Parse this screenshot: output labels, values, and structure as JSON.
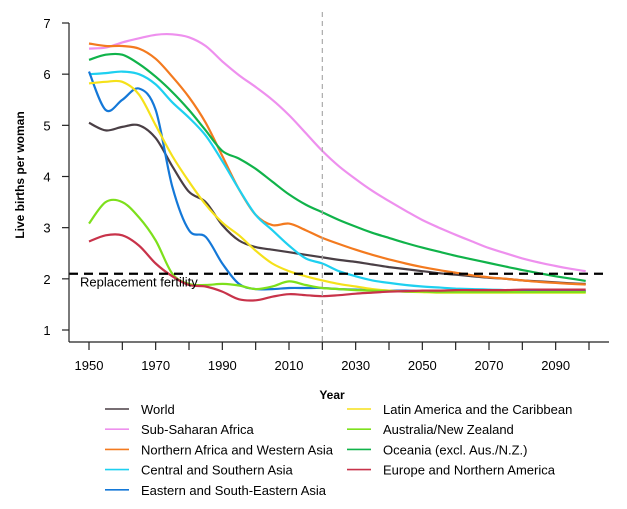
{
  "chart_data": {
    "type": "line",
    "title": "",
    "xlabel": "Year",
    "ylabel": "Live births per woman",
    "xlim": [
      1950,
      2100
    ],
    "ylim": [
      1,
      7
    ],
    "x_ticks": [
      1950,
      1960,
      1970,
      1980,
      1990,
      2000,
      2010,
      2020,
      2030,
      2040,
      2050,
      2060,
      2070,
      2080,
      2090,
      2100
    ],
    "x_tick_labels": [
      "1950",
      "",
      "1970",
      "",
      "1990",
      "",
      "2010",
      "",
      "2030",
      "",
      "2050",
      "",
      "2070",
      "",
      "2090",
      ""
    ],
    "y_ticks": [
      1,
      2,
      3,
      4,
      5,
      6,
      7
    ],
    "y_tick_labels": [
      "1",
      "2",
      "3",
      "4",
      "5",
      "6",
      "7"
    ],
    "grid": false,
    "legend_position": "bottom",
    "reference_line": {
      "y": 2.1,
      "label": "Replacement fertility",
      "color": "#000000",
      "style": "dashed"
    },
    "vertical_marker": {
      "x": 2020,
      "color": "#aaaaaa",
      "style": "dashed"
    },
    "x": [
      1950,
      1955,
      1960,
      1965,
      1970,
      1975,
      1980,
      1985,
      1990,
      1995,
      2000,
      2005,
      2010,
      2015,
      2020,
      2025,
      2030,
      2035,
      2040,
      2045,
      2050,
      2055,
      2060,
      2065,
      2070,
      2075,
      2080,
      2085,
      2090,
      2095,
      2099
    ],
    "series": [
      {
        "name": "World",
        "color": "#4a3f45",
        "values": [
          5.05,
          4.9,
          4.97,
          5.0,
          4.75,
          4.2,
          3.7,
          3.5,
          3.05,
          2.75,
          2.62,
          2.57,
          2.52,
          2.47,
          2.42,
          2.37,
          2.33,
          2.28,
          2.23,
          2.19,
          2.15,
          2.11,
          2.08,
          2.05,
          2.02,
          2.0,
          1.97,
          1.95,
          1.93,
          1.91,
          1.9
        ]
      },
      {
        "name": "Sub-Saharan Africa",
        "color": "#ee90ee",
        "values": [
          6.5,
          6.52,
          6.62,
          6.7,
          6.77,
          6.78,
          6.72,
          6.55,
          6.25,
          5.98,
          5.75,
          5.5,
          5.2,
          4.85,
          4.5,
          4.2,
          3.95,
          3.72,
          3.52,
          3.33,
          3.15,
          3.0,
          2.86,
          2.73,
          2.6,
          2.5,
          2.4,
          2.32,
          2.25,
          2.19,
          2.15
        ]
      },
      {
        "name": "Northern Africa and Western Asia",
        "color": "#f37a1f",
        "values": [
          6.6,
          6.55,
          6.55,
          6.5,
          6.3,
          5.95,
          5.55,
          5.05,
          4.4,
          3.75,
          3.25,
          3.05,
          3.08,
          2.95,
          2.8,
          2.68,
          2.57,
          2.47,
          2.38,
          2.3,
          2.23,
          2.17,
          2.12,
          2.07,
          2.03,
          2.0,
          1.97,
          1.94,
          1.92,
          1.9,
          1.89
        ]
      },
      {
        "name": "Central and Southern Asia",
        "color": "#1ed0f0",
        "values": [
          6.0,
          6.02,
          6.05,
          6.0,
          5.8,
          5.45,
          5.15,
          4.8,
          4.3,
          3.75,
          3.25,
          2.95,
          2.65,
          2.4,
          2.3,
          2.15,
          2.05,
          1.97,
          1.92,
          1.88,
          1.85,
          1.83,
          1.81,
          1.8,
          1.79,
          1.78,
          1.77,
          1.77,
          1.76,
          1.76,
          1.76
        ]
      },
      {
        "name": "Eastern and South-Eastern Asia",
        "color": "#1478d8",
        "values": [
          6.05,
          5.3,
          5.5,
          5.72,
          5.3,
          3.8,
          2.95,
          2.82,
          2.3,
          1.9,
          1.8,
          1.8,
          1.82,
          1.82,
          1.82,
          1.8,
          1.79,
          1.78,
          1.77,
          1.77,
          1.76,
          1.76,
          1.76,
          1.76,
          1.76,
          1.76,
          1.76,
          1.76,
          1.76,
          1.76,
          1.76
        ]
      },
      {
        "name": "Latin America and the Caribbean",
        "color": "#f5e11a",
        "values": [
          5.82,
          5.85,
          5.85,
          5.6,
          5.0,
          4.4,
          3.9,
          3.45,
          3.1,
          2.85,
          2.55,
          2.3,
          2.15,
          2.05,
          1.97,
          1.9,
          1.85,
          1.8,
          1.77,
          1.75,
          1.74,
          1.73,
          1.73,
          1.73,
          1.73,
          1.73,
          1.73,
          1.73,
          1.73,
          1.73,
          1.73
        ]
      },
      {
        "name": "Australia/New Zealand",
        "color": "#7de01c",
        "values": [
          3.08,
          3.5,
          3.5,
          3.2,
          2.75,
          2.1,
          1.9,
          1.88,
          1.9,
          1.87,
          1.8,
          1.85,
          1.95,
          1.88,
          1.82,
          1.8,
          1.78,
          1.77,
          1.76,
          1.75,
          1.75,
          1.74,
          1.74,
          1.74,
          1.74,
          1.74,
          1.74,
          1.74,
          1.74,
          1.74,
          1.74
        ]
      },
      {
        "name": "Oceania (excl. Aus./N.Z.)",
        "color": "#10b34a",
        "values": [
          6.28,
          6.38,
          6.38,
          6.2,
          5.95,
          5.65,
          5.3,
          4.9,
          4.5,
          4.35,
          4.15,
          3.9,
          3.65,
          3.45,
          3.3,
          3.15,
          3.02,
          2.9,
          2.8,
          2.7,
          2.61,
          2.53,
          2.45,
          2.38,
          2.31,
          2.24,
          2.17,
          2.11,
          2.05,
          2.0,
          1.96
        ]
      },
      {
        "name": "Europe and Northern America",
        "color": "#c8334a",
        "values": [
          2.73,
          2.85,
          2.85,
          2.65,
          2.3,
          2.05,
          1.88,
          1.85,
          1.75,
          1.6,
          1.58,
          1.65,
          1.7,
          1.68,
          1.66,
          1.68,
          1.71,
          1.73,
          1.75,
          1.76,
          1.77,
          1.77,
          1.78,
          1.78,
          1.78,
          1.78,
          1.79,
          1.79,
          1.79,
          1.79,
          1.79
        ]
      }
    ]
  }
}
